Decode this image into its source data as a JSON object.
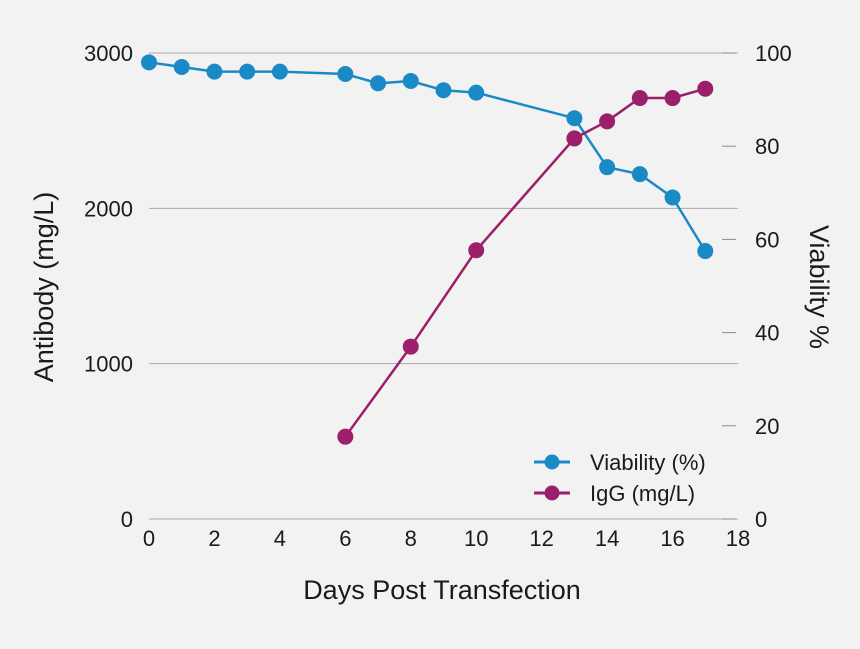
{
  "chart_data": {
    "type": "line",
    "xlabel": "Days Post Transfection",
    "ylabel_left": "Antibody (mg/L)",
    "ylabel_right": "Viability %",
    "xlim": [
      0,
      18
    ],
    "x_ticks": [
      "0",
      "2",
      "4",
      "6",
      "8",
      "10",
      "12",
      "14",
      "16",
      "18"
    ],
    "ylim_left": [
      0,
      3000
    ],
    "y_left_ticks": [
      "0",
      "1000",
      "2000",
      "3000"
    ],
    "ylim_right": [
      0,
      100
    ],
    "y_right_ticks": [
      "0",
      "20",
      "40",
      "60",
      "80",
      "100"
    ],
    "grid": true,
    "legend_position": "bottom-right",
    "series": [
      {
        "name": "Viability (%)",
        "axis": "right",
        "color": "#1a8ac6",
        "x": [
          0,
          1,
          2,
          3,
          4,
          6,
          7,
          8,
          9,
          10,
          13,
          14,
          15,
          16,
          17
        ],
        "values": [
          98,
          97,
          96,
          96,
          96,
          95.5,
          93.5,
          94,
          92,
          91.5,
          86,
          75.5,
          74,
          69,
          57.5
        ]
      },
      {
        "name": "IgG (mg/L)",
        "axis": "left",
        "color": "#9b1f6a",
        "x": [
          6,
          8,
          10,
          13,
          14,
          15,
          16,
          17
        ],
        "values": [
          530,
          1110,
          1730,
          2450,
          2560,
          2710,
          2710,
          2770
        ]
      }
    ]
  }
}
